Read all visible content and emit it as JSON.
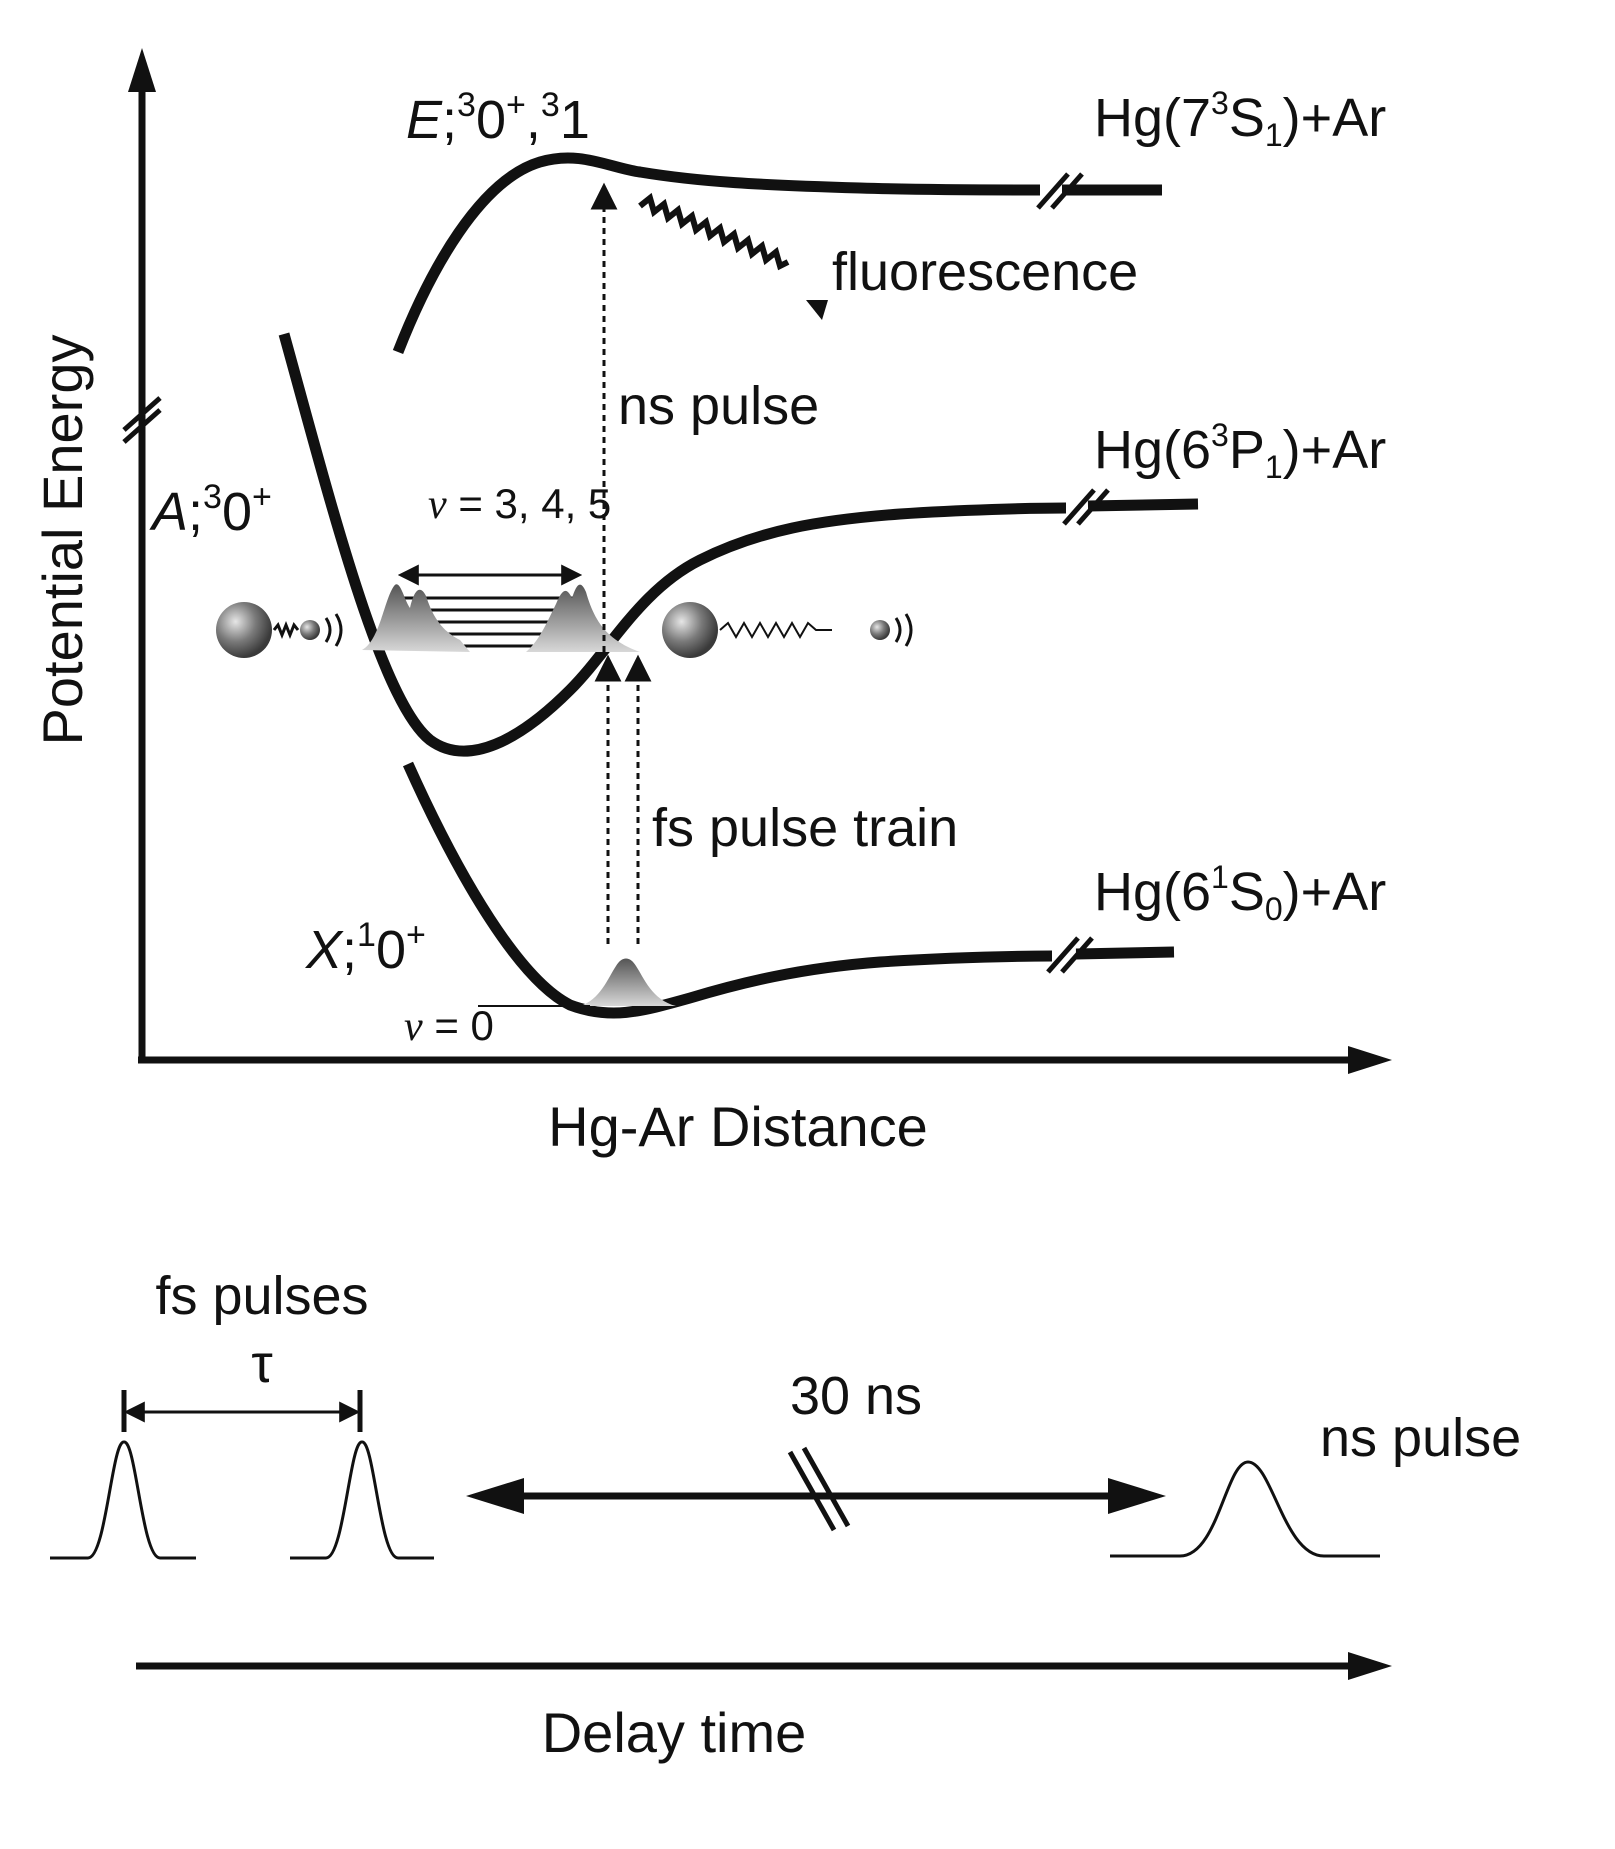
{
  "potential_diagram": {
    "y_axis_label": "Potential Energy",
    "x_axis_label": "Hg-Ar Distance",
    "states": {
      "E": {
        "letter": "E",
        "sep": ";",
        "sup1": "3",
        "mid": "0",
        "sup2": "+",
        "comma": ",",
        "sup3": "3",
        "end": "1"
      },
      "A": {
        "letter": "A",
        "sep": ";",
        "sup1": "3",
        "mid": "0",
        "sup2": "+"
      },
      "X": {
        "letter": "X",
        "sep": ";",
        "sup1": "1",
        "mid": "0",
        "sup2": "+"
      }
    },
    "asymptotes": {
      "upper": {
        "pre": "Hg(7",
        "sup": "3",
        "term": "S",
        "sub": "1",
        "post": ")+Ar"
      },
      "middle": {
        "pre": "Hg(6",
        "sup": "3",
        "term": "P",
        "sub": "1",
        "post": ")+Ar"
      },
      "lower": {
        "pre": "Hg(6",
        "sup": "1",
        "term": "S",
        "sub": "0",
        "post": ")+Ar"
      }
    },
    "labels": {
      "fluorescence": "fluorescence",
      "ns_pulse": "ns pulse",
      "fs_pulse_train": "fs pulse train",
      "v_excited_sym": "v",
      "v_excited_val": " = 3, 4, 5",
      "v_ground_sym": "v",
      "v_ground_val": " = 0"
    }
  },
  "timing_diagram": {
    "fs_pulses_label": "fs pulses",
    "tau_label": "τ",
    "delay_label": "30 ns",
    "ns_pulse_label": "ns pulse",
    "x_axis_label": "Delay time"
  }
}
